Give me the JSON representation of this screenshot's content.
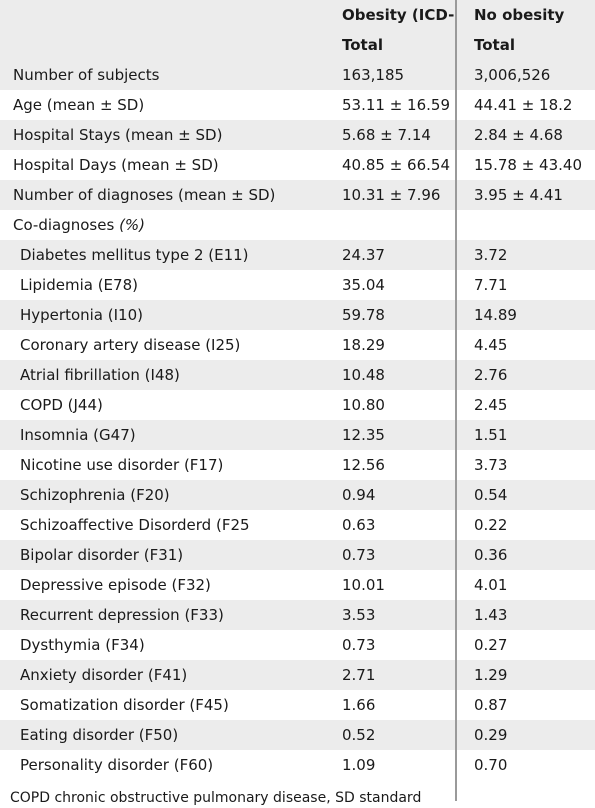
{
  "header": {
    "col_obesity": "Obesity (ICD-",
    "col_no_obesity": "No obesity",
    "sub_obesity": "Total",
    "sub_no_obesity": "Total"
  },
  "summary_rows": [
    {
      "label": "Number of subjects",
      "obesity": "163,185",
      "no_obesity": "3,006,526"
    },
    {
      "label": "Age (mean ± SD)",
      "obesity": "53.11 ± 16.59",
      "no_obesity": "44.41 ± 18.2"
    },
    {
      "label": "Hospital Stays (mean ± SD)",
      "obesity": "5.68 ± 7.14",
      "no_obesity": "2.84 ± 4.68"
    },
    {
      "label": "Hospital Days (mean ± SD)",
      "obesity": "40.85 ± 66.54",
      "no_obesity": "15.78 ± 43.40"
    },
    {
      "label": "Number of diagnoses (mean ± SD)",
      "obesity": "10.31 ± 7.96",
      "no_obesity": "3.95 ± 4.41"
    }
  ],
  "co_diagnoses": {
    "label": "Co-diagnoses ",
    "label_unit": "(%)",
    "rows": [
      {
        "label": "Diabetes mellitus type 2 (E11)",
        "obesity": "24.37",
        "no_obesity": "3.72"
      },
      {
        "label": "Lipidemia (E78)",
        "obesity": "35.04",
        "no_obesity": "7.71"
      },
      {
        "label": "Hypertonia (I10)",
        "obesity": "59.78",
        "no_obesity": "14.89"
      },
      {
        "label": "Coronary artery disease (I25)",
        "obesity": "18.29",
        "no_obesity": "4.45"
      },
      {
        "label": "Atrial fibrillation (I48)",
        "obesity": "10.48",
        "no_obesity": "2.76"
      },
      {
        "label": "COPD (J44)",
        "obesity": "10.80",
        "no_obesity": "2.45"
      },
      {
        "label": "Insomnia (G47)",
        "obesity": "12.35",
        "no_obesity": "1.51"
      },
      {
        "label": "Nicotine use disorder (F17)",
        "obesity": "12.56",
        "no_obesity": "3.73"
      },
      {
        "label": "Schizophrenia (F20)",
        "obesity": "0.94",
        "no_obesity": "0.54"
      },
      {
        "label": "Schizoaffective Disorderd (F25",
        "obesity": "0.63",
        "no_obesity": "0.22"
      },
      {
        "label": "Bipolar disorder (F31)",
        "obesity": "0.73",
        "no_obesity": "0.36"
      },
      {
        "label": "Depressive episode (F32)",
        "obesity": "10.01",
        "no_obesity": "4.01"
      },
      {
        "label": "Recurrent depression (F33)",
        "obesity": "3.53",
        "no_obesity": "1.43"
      },
      {
        "label": "Dysthymia (F34)",
        "obesity": "0.73",
        "no_obesity": "0.27"
      },
      {
        "label": "Anxiety disorder (F41)",
        "obesity": "2.71",
        "no_obesity": "1.29"
      },
      {
        "label": "Somatization disorder (F45)",
        "obesity": "1.66",
        "no_obesity": "0.87"
      },
      {
        "label": "Eating disorder (F50)",
        "obesity": "0.52",
        "no_obesity": "0.29"
      },
      {
        "label": "Personality disorder (F60)",
        "obesity": "1.09",
        "no_obesity": "0.70"
      }
    ]
  },
  "footer_text": "COPD chronic obstructive pulmonary disease, SD standard"
}
